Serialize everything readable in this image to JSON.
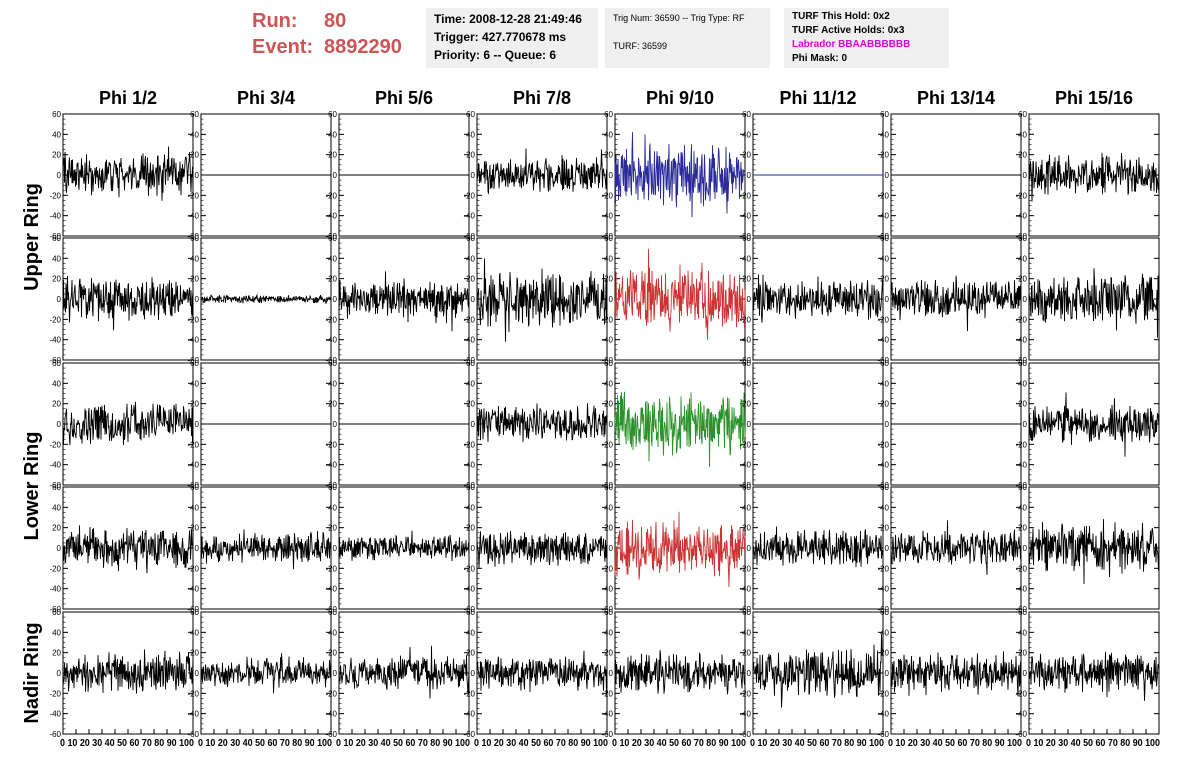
{
  "header": {
    "run_label": "Run:",
    "run_value": "80",
    "event_label": "Event:",
    "event_value": "8892290",
    "time": "Time: 2008-12-28 21:49:46",
    "trigger": "Trigger: 427.770678 ms",
    "priority": "Priority: 6 -- Queue: 6",
    "trig_num": "Trig Num: 36590 -- Trig Type: RF",
    "turf": "TURF: 36599",
    "turf_this_hold": "TURF This Hold: 0x2",
    "turf_active_holds": "TURF Active Holds: 0x3",
    "labrador": "Labrador BBAABBBBBB",
    "phi_mask": "Phi Mask: 0"
  },
  "colors": {
    "run_text": "#cc5555",
    "labrador_text": "#dd00dd",
    "trace_default": "#000000",
    "trace_blue": "#2a2a9a",
    "trace_red": "#cc3333",
    "trace_green": "#2a922a",
    "info_bg": "#efefef"
  },
  "chart_data": {
    "type": "line",
    "columns": [
      "Phi 1/2",
      "Phi 3/4",
      "Phi 5/6",
      "Phi 7/8",
      "Phi 9/10",
      "Phi 11/12",
      "Phi 13/14",
      "Phi 15/16"
    ],
    "ring_labels": [
      "Upper Ring",
      "Lower Ring",
      "Nadir Ring"
    ],
    "ylim": [
      -60,
      60
    ],
    "xlim": [
      0,
      100
    ],
    "y_ticks_left": [
      "60",
      "40",
      "20",
      "0",
      "-20",
      "-40",
      "-60"
    ],
    "x_ticks": [
      "0",
      "10",
      "20",
      "30",
      "40",
      "50",
      "60",
      "70",
      "80",
      "90",
      "100"
    ],
    "x_tick_text": "0 10 20 30 40 50 60 70 80 90 100",
    "rows": [
      {
        "panels": [
          {
            "color": "#000000",
            "amplitude": 15,
            "flat": false
          },
          {
            "color": "#000000",
            "amplitude": 0,
            "flat": true
          },
          {
            "color": "#000000",
            "amplitude": 0,
            "flat": true
          },
          {
            "color": "#000000",
            "amplitude": 12,
            "flat": false
          },
          {
            "color": "#2a2a9a",
            "amplitude": 22,
            "flat": false
          },
          {
            "color": "#2a2a9a",
            "amplitude": 0,
            "flat": true
          },
          {
            "color": "#000000",
            "amplitude": 0,
            "flat": true
          },
          {
            "color": "#000000",
            "amplitude": 15,
            "flat": false
          }
        ]
      },
      {
        "panels": [
          {
            "color": "#000000",
            "amplitude": 16,
            "flat": false
          },
          {
            "color": "#000000",
            "amplitude": 3,
            "flat": false
          },
          {
            "color": "#000000",
            "amplitude": 14,
            "flat": false
          },
          {
            "color": "#000000",
            "amplitude": 20,
            "flat": false
          },
          {
            "color": "#cc3333",
            "amplitude": 22,
            "flat": false
          },
          {
            "color": "#000000",
            "amplitude": 14,
            "flat": false
          },
          {
            "color": "#000000",
            "amplitude": 14,
            "flat": false
          },
          {
            "color": "#000000",
            "amplitude": 18,
            "flat": false
          }
        ]
      },
      {
        "panels": [
          {
            "color": "#000000",
            "amplitude": 15,
            "flat": false
          },
          {
            "color": "#000000",
            "amplitude": 0,
            "flat": true
          },
          {
            "color": "#000000",
            "amplitude": 0,
            "flat": true
          },
          {
            "color": "#000000",
            "amplitude": 13,
            "flat": false
          },
          {
            "color": "#2a922a",
            "amplitude": 22,
            "flat": false
          },
          {
            "color": "#000000",
            "amplitude": 0,
            "flat": true
          },
          {
            "color": "#000000",
            "amplitude": 0,
            "flat": true
          },
          {
            "color": "#000000",
            "amplitude": 14,
            "flat": false
          }
        ]
      },
      {
        "panels": [
          {
            "color": "#000000",
            "amplitude": 14,
            "flat": false
          },
          {
            "color": "#000000",
            "amplitude": 11,
            "flat": false
          },
          {
            "color": "#000000",
            "amplitude": 9,
            "flat": false
          },
          {
            "color": "#000000",
            "amplitude": 12,
            "flat": false
          },
          {
            "color": "#cc3333",
            "amplitude": 20,
            "flat": false
          },
          {
            "color": "#000000",
            "amplitude": 14,
            "flat": false
          },
          {
            "color": "#000000",
            "amplitude": 13,
            "flat": false
          },
          {
            "color": "#000000",
            "amplitude": 18,
            "flat": false
          }
        ]
      },
      {
        "panels": [
          {
            "color": "#000000",
            "amplitude": 15,
            "flat": false
          },
          {
            "color": "#000000",
            "amplitude": 11,
            "flat": false
          },
          {
            "color": "#000000",
            "amplitude": 12,
            "flat": false
          },
          {
            "color": "#000000",
            "amplitude": 12,
            "flat": false
          },
          {
            "color": "#000000",
            "amplitude": 14,
            "flat": false
          },
          {
            "color": "#000000",
            "amplitude": 18,
            "flat": false
          },
          {
            "color": "#000000",
            "amplitude": 15,
            "flat": false
          },
          {
            "color": "#000000",
            "amplitude": 14,
            "flat": false
          }
        ]
      }
    ]
  }
}
